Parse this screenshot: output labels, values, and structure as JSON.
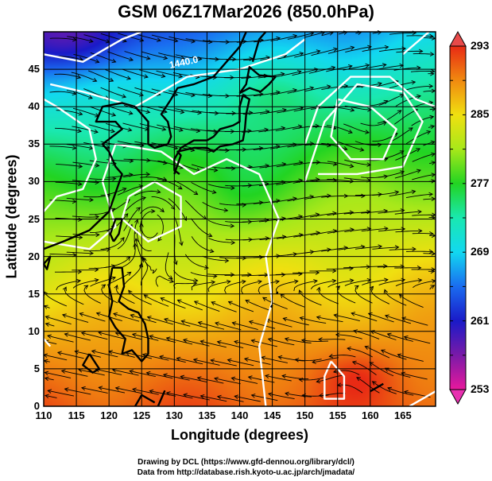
{
  "title": "GSM 06Z17Mar2026 (850.0hPa)",
  "x_axis": {
    "label": "Longitude (degrees)",
    "ticks": [
      "110",
      "115",
      "120",
      "125",
      "130",
      "135",
      "140",
      "145",
      "150",
      "155",
      "160",
      "165"
    ],
    "range": [
      110,
      170
    ]
  },
  "y_axis": {
    "label": "Latitude  (degrees)",
    "ticks": [
      "0",
      "5",
      "10",
      "15",
      "20",
      "25",
      "30",
      "35",
      "40",
      "45"
    ],
    "range": [
      0,
      50
    ]
  },
  "colorbar": {
    "labels": [
      "293",
      "285",
      "277",
      "269",
      "261",
      "253"
    ],
    "range": [
      253,
      293
    ],
    "units_hint": "temperature (K)",
    "colors": [
      "#e8189c",
      "#7a1aa8",
      "#1a1ac8",
      "#1a6cf0",
      "#12d8f0",
      "#1ae8b0",
      "#22d422",
      "#a8e81a",
      "#f0e010",
      "#f08a10",
      "#e82a14"
    ]
  },
  "contour_label": "1440.0",
  "credits": {
    "line1": "Drawing by DCL (https://www.gfd-dennou.org/library/dcl/)",
    "line2": "Data from http://database.rish.kyoto-u.ac.jp/arch/jmadata/"
  },
  "chart_data": {
    "type": "heatmap",
    "title": "GSM 06Z17Mar2026 (850.0hPa)",
    "xlabel": "Longitude (degrees)",
    "ylabel": "Latitude  (degrees)",
    "xlim": [
      110,
      170
    ],
    "ylim": [
      0,
      50
    ],
    "color_range": [
      253,
      293
    ],
    "overlays": [
      "streamlines (wind)",
      "white geopotential height contours",
      "coastlines",
      "5-degree grid"
    ],
    "features": {
      "cyclone_center": [
        161,
        36
      ],
      "anticyclone_center": [
        127,
        27
      ],
      "warm_max_near": [
        158,
        4
      ]
    }
  }
}
